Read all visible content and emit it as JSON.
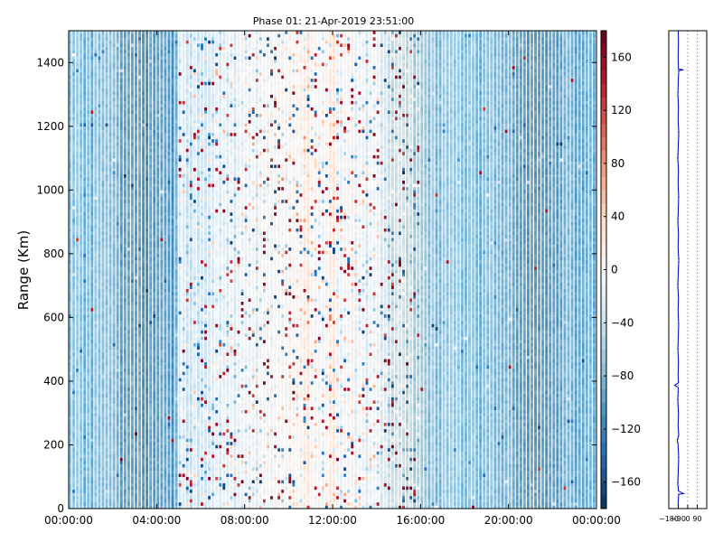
{
  "chart_data": [
    {
      "type": "heatmap",
      "title": "Phase 01: 21-Apr-2019 23:51:00",
      "xlabel": "",
      "ylabel": "Range (Km)",
      "xlim": [
        "00:00:00",
        "24:00:00"
      ],
      "ylim": [
        0,
        1500
      ],
      "x_tick_labels": [
        "00:00:00",
        "04:00:00",
        "08:00:00",
        "12:00:00",
        "16:00:00",
        "20:00:00",
        "00:00:00"
      ],
      "x_tick_hours": [
        0,
        4,
        8,
        12,
        16,
        20,
        24
      ],
      "y_ticks": [
        0,
        200,
        400,
        600,
        800,
        1000,
        1200,
        1400
      ],
      "column_interval_minutes": 10,
      "time_profile": {
        "hours": [
          0,
          1,
          2,
          3,
          4,
          4.9,
          5.0,
          6,
          7,
          8,
          9,
          10,
          11,
          12,
          13,
          14,
          15,
          16,
          17,
          18,
          19,
          20,
          21,
          22,
          23,
          24
        ],
        "mean_value": [
          -75,
          -80,
          -85,
          -90,
          -100,
          -105,
          -30,
          -25,
          -20,
          -15,
          -5,
          5,
          10,
          5,
          -5,
          -15,
          -40,
          -60,
          -70,
          -75,
          -80,
          -85,
          -90,
          -90,
          -90,
          -90
        ]
      },
      "colormap": "RdBu_r",
      "grid": false
    },
    {
      "type": "colorbar",
      "range": [
        -180,
        180
      ],
      "ticks": [
        -160,
        -120,
        -80,
        -40,
        0,
        40,
        80,
        120,
        160
      ]
    },
    {
      "type": "line",
      "x_ticks": [
        -180,
        -90,
        0,
        90
      ],
      "x_tick_labels": [
        "−180",
        "−90",
        "0",
        "90"
      ],
      "xlim": [
        -180,
        180
      ],
      "ylim": [
        0,
        1500
      ],
      "grid": true,
      "grid_style": "dotted",
      "series": [
        {
          "color": "#0000cc",
          "points": [
            [
              -90,
              0
            ],
            [
              -92,
              20
            ],
            [
              -85,
              45
            ],
            [
              -40,
              47
            ],
            [
              -88,
              55
            ],
            [
              -95,
              80
            ],
            [
              -90,
              120
            ],
            [
              -86,
              160
            ],
            [
              -92,
              200
            ],
            [
              -100,
              215
            ],
            [
              -85,
              230
            ],
            [
              -92,
              260
            ],
            [
              -88,
              300
            ],
            [
              -95,
              340
            ],
            [
              -90,
              380
            ],
            [
              -125,
              387
            ],
            [
              -88,
              395
            ],
            [
              -92,
              420
            ],
            [
              -88,
              460
            ],
            [
              -94,
              500
            ],
            [
              -90,
              540
            ],
            [
              -86,
              580
            ],
            [
              -92,
              620
            ],
            [
              -88,
              660
            ],
            [
              -95,
              700
            ],
            [
              -90,
              740
            ],
            [
              -85,
              780
            ],
            [
              -92,
              820
            ],
            [
              -88,
              860
            ],
            [
              -94,
              900
            ],
            [
              -90,
              940
            ],
            [
              -86,
              980
            ],
            [
              -92,
              1020
            ],
            [
              -88,
              1060
            ],
            [
              -95,
              1100
            ],
            [
              -90,
              1140
            ],
            [
              -85,
              1180
            ],
            [
              -92,
              1220
            ],
            [
              -88,
              1260
            ],
            [
              -94,
              1300
            ],
            [
              -90,
              1340
            ],
            [
              -85,
              1375
            ],
            [
              -40,
              1377
            ],
            [
              -88,
              1380
            ],
            [
              -92,
              1420
            ],
            [
              -88,
              1460
            ],
            [
              -90,
              1500
            ]
          ]
        }
      ]
    }
  ]
}
